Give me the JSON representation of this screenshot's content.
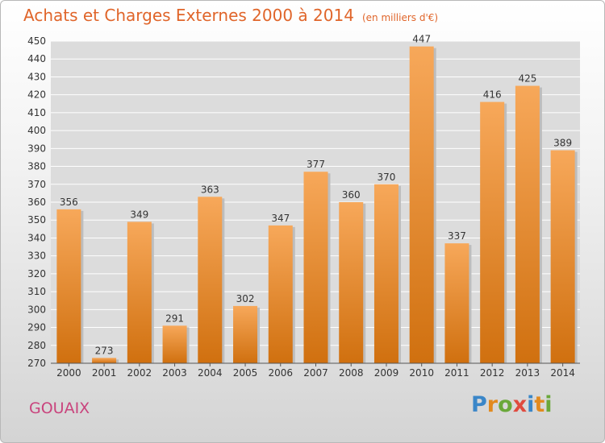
{
  "title": "Achats et Charges Externes 2000 à 2014",
  "unit": "(en milliers d'€)",
  "city": "GOUAIX",
  "logo": "Proxiti",
  "colors": {
    "bar_top": "#f7a85a",
    "bar_bottom": "#d0700f",
    "title": "#e0652a",
    "city": "#c9447d",
    "grid": "#ffffff"
  },
  "chart_data": {
    "type": "bar",
    "title": "Achats et Charges Externes 2000 à 2014",
    "subtitle": "(en milliers d'€)",
    "xlabel": "",
    "ylabel": "",
    "categories": [
      "2000",
      "2001",
      "2002",
      "2003",
      "2004",
      "2005",
      "2006",
      "2007",
      "2008",
      "2009",
      "2010",
      "2011",
      "2012",
      "2013",
      "2014"
    ],
    "values": [
      356,
      273,
      349,
      291,
      363,
      302,
      347,
      377,
      360,
      370,
      447,
      337,
      416,
      425,
      389
    ],
    "ylim": [
      270,
      450
    ],
    "yticks": [
      270,
      280,
      290,
      300,
      310,
      320,
      330,
      340,
      350,
      360,
      370,
      380,
      390,
      400,
      410,
      420,
      430,
      440,
      450
    ],
    "grid": true,
    "legend": "none"
  }
}
